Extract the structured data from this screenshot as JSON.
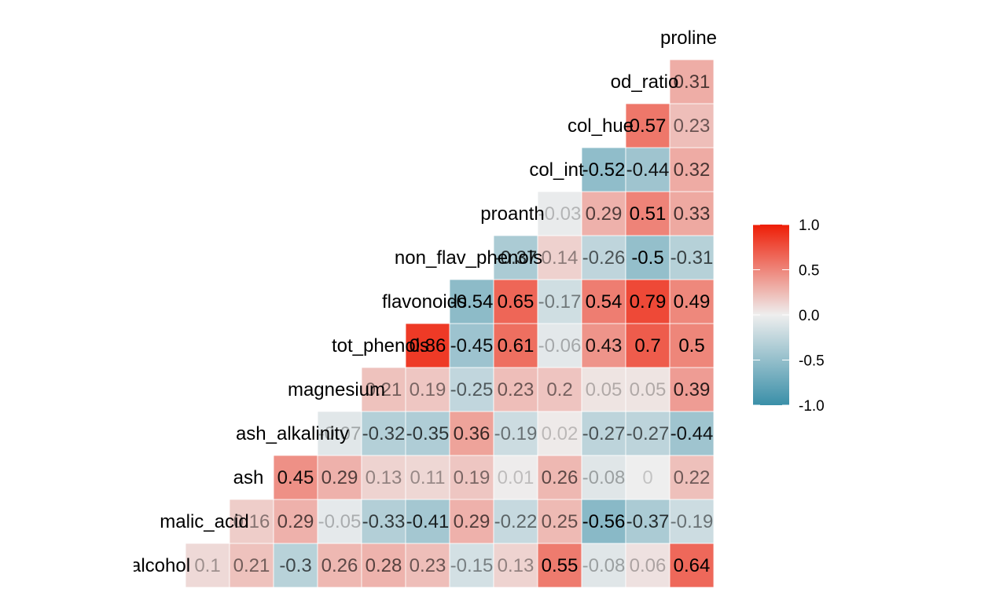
{
  "chart_data": {
    "type": "heatmap",
    "title": "",
    "xlabel": "",
    "ylabel": "",
    "variables": [
      "alcohol",
      "malic_acid",
      "ash",
      "ash_alkalinity",
      "magnesium",
      "tot_phenols",
      "flavonoids",
      "non_flav_phenols",
      "proanth",
      "col_int",
      "col_hue",
      "od_ratio",
      "proline"
    ],
    "variable_labels": [
      "alcohol",
      "malic_acid",
      "ash",
      "ash_alkalinity",
      "magnesium",
      "tot_phenols",
      "flavonoids",
      "non_flav_phenols",
      "proanth",
      "col_int",
      "col_hue",
      "od_ratio",
      "proline"
    ],
    "cells": [
      {
        "row": "alcohol",
        "col": "malic_acid",
        "value": 0.1,
        "label": "0.1"
      },
      {
        "row": "alcohol",
        "col": "ash",
        "value": 0.21,
        "label": "0.21"
      },
      {
        "row": "alcohol",
        "col": "ash_alkalinity",
        "value": -0.3,
        "label": "-0.3"
      },
      {
        "row": "alcohol",
        "col": "magnesium",
        "value": 0.26,
        "label": "0.26"
      },
      {
        "row": "alcohol",
        "col": "tot_phenols",
        "value": 0.28,
        "label": "0.28"
      },
      {
        "row": "alcohol",
        "col": "flavonoids",
        "value": 0.23,
        "label": "0.23"
      },
      {
        "row": "alcohol",
        "col": "non_flav_phenols",
        "value": -0.15,
        "label": "-0.15"
      },
      {
        "row": "alcohol",
        "col": "proanth",
        "value": 0.13,
        "label": "0.13"
      },
      {
        "row": "alcohol",
        "col": "col_int",
        "value": 0.55,
        "label": "0.55"
      },
      {
        "row": "alcohol",
        "col": "col_hue",
        "value": -0.08,
        "label": "-0.08"
      },
      {
        "row": "alcohol",
        "col": "od_ratio",
        "value": 0.06,
        "label": "0.06"
      },
      {
        "row": "alcohol",
        "col": "proline",
        "value": 0.64,
        "label": "0.64"
      },
      {
        "row": "malic_acid",
        "col": "ash",
        "value": 0.16,
        "label": "0.16"
      },
      {
        "row": "malic_acid",
        "col": "ash_alkalinity",
        "value": 0.29,
        "label": "0.29"
      },
      {
        "row": "malic_acid",
        "col": "magnesium",
        "value": -0.05,
        "label": "-0.05"
      },
      {
        "row": "malic_acid",
        "col": "tot_phenols",
        "value": -0.33,
        "label": "-0.33"
      },
      {
        "row": "malic_acid",
        "col": "flavonoids",
        "value": -0.41,
        "label": "-0.41"
      },
      {
        "row": "malic_acid",
        "col": "non_flav_phenols",
        "value": 0.29,
        "label": "0.29"
      },
      {
        "row": "malic_acid",
        "col": "proanth",
        "value": -0.22,
        "label": "-0.22"
      },
      {
        "row": "malic_acid",
        "col": "col_int",
        "value": 0.25,
        "label": "0.25"
      },
      {
        "row": "malic_acid",
        "col": "col_hue",
        "value": -0.56,
        "label": "-0.56"
      },
      {
        "row": "malic_acid",
        "col": "od_ratio",
        "value": -0.37,
        "label": "-0.37"
      },
      {
        "row": "malic_acid",
        "col": "proline",
        "value": -0.19,
        "label": "-0.19"
      },
      {
        "row": "ash",
        "col": "ash_alkalinity",
        "value": 0.45,
        "label": "0.45"
      },
      {
        "row": "ash",
        "col": "magnesium",
        "value": 0.29,
        "label": "0.29"
      },
      {
        "row": "ash",
        "col": "tot_phenols",
        "value": 0.13,
        "label": "0.13"
      },
      {
        "row": "ash",
        "col": "flavonoids",
        "value": 0.11,
        "label": "0.11"
      },
      {
        "row": "ash",
        "col": "non_flav_phenols",
        "value": 0.19,
        "label": "0.19"
      },
      {
        "row": "ash",
        "col": "proanth",
        "value": 0.01,
        "label": "0.01"
      },
      {
        "row": "ash",
        "col": "col_int",
        "value": 0.26,
        "label": "0.26"
      },
      {
        "row": "ash",
        "col": "col_hue",
        "value": -0.08,
        "label": "-0.08"
      },
      {
        "row": "ash",
        "col": "od_ratio",
        "value": 0,
        "label": "0"
      },
      {
        "row": "ash",
        "col": "proline",
        "value": 0.22,
        "label": "0.22"
      },
      {
        "row": "ash_alkalinity",
        "col": "magnesium",
        "value": -0.07,
        "label": "-0.07"
      },
      {
        "row": "ash_alkalinity",
        "col": "tot_phenols",
        "value": -0.32,
        "label": "-0.32"
      },
      {
        "row": "ash_alkalinity",
        "col": "flavonoids",
        "value": -0.35,
        "label": "-0.35"
      },
      {
        "row": "ash_alkalinity",
        "col": "non_flav_phenols",
        "value": 0.36,
        "label": "0.36"
      },
      {
        "row": "ash_alkalinity",
        "col": "proanth",
        "value": -0.19,
        "label": "-0.19"
      },
      {
        "row": "ash_alkalinity",
        "col": "col_int",
        "value": 0.02,
        "label": "0.02"
      },
      {
        "row": "ash_alkalinity",
        "col": "col_hue",
        "value": -0.27,
        "label": "-0.27"
      },
      {
        "row": "ash_alkalinity",
        "col": "od_ratio",
        "value": -0.27,
        "label": "-0.27"
      },
      {
        "row": "ash_alkalinity",
        "col": "proline",
        "value": -0.44,
        "label": "-0.44"
      },
      {
        "row": "magnesium",
        "col": "tot_phenols",
        "value": 0.21,
        "label": "0.21"
      },
      {
        "row": "magnesium",
        "col": "flavonoids",
        "value": 0.19,
        "label": "0.19"
      },
      {
        "row": "magnesium",
        "col": "non_flav_phenols",
        "value": -0.25,
        "label": "-0.25"
      },
      {
        "row": "magnesium",
        "col": "proanth",
        "value": 0.23,
        "label": "0.23"
      },
      {
        "row": "magnesium",
        "col": "col_int",
        "value": 0.2,
        "label": "0.2"
      },
      {
        "row": "magnesium",
        "col": "col_hue",
        "value": 0.05,
        "label": "0.05"
      },
      {
        "row": "magnesium",
        "col": "od_ratio",
        "value": 0.05,
        "label": "0.05"
      },
      {
        "row": "magnesium",
        "col": "proline",
        "value": 0.39,
        "label": "0.39"
      },
      {
        "row": "tot_phenols",
        "col": "flavonoids",
        "value": 0.86,
        "label": "0.86"
      },
      {
        "row": "tot_phenols",
        "col": "non_flav_phenols",
        "value": -0.45,
        "label": "-0.45"
      },
      {
        "row": "tot_phenols",
        "col": "proanth",
        "value": 0.61,
        "label": "0.61"
      },
      {
        "row": "tot_phenols",
        "col": "col_int",
        "value": -0.06,
        "label": "-0.06"
      },
      {
        "row": "tot_phenols",
        "col": "col_hue",
        "value": 0.43,
        "label": "0.43"
      },
      {
        "row": "tot_phenols",
        "col": "od_ratio",
        "value": 0.7,
        "label": "0.7"
      },
      {
        "row": "tot_phenols",
        "col": "proline",
        "value": 0.5,
        "label": "0.5"
      },
      {
        "row": "flavonoids",
        "col": "non_flav_phenols",
        "value": -0.54,
        "label": "-0.54"
      },
      {
        "row": "flavonoids",
        "col": "proanth",
        "value": 0.65,
        "label": "0.65"
      },
      {
        "row": "flavonoids",
        "col": "col_int",
        "value": -0.17,
        "label": "-0.17"
      },
      {
        "row": "flavonoids",
        "col": "col_hue",
        "value": 0.54,
        "label": "0.54"
      },
      {
        "row": "flavonoids",
        "col": "od_ratio",
        "value": 0.79,
        "label": "0.79"
      },
      {
        "row": "flavonoids",
        "col": "proline",
        "value": 0.49,
        "label": "0.49"
      },
      {
        "row": "non_flav_phenols",
        "col": "proanth",
        "value": -0.37,
        "label": "-0.37"
      },
      {
        "row": "non_flav_phenols",
        "col": "col_int",
        "value": 0.14,
        "label": "0.14"
      },
      {
        "row": "non_flav_phenols",
        "col": "col_hue",
        "value": -0.26,
        "label": "-0.26"
      },
      {
        "row": "non_flav_phenols",
        "col": "od_ratio",
        "value": -0.5,
        "label": "-0.5"
      },
      {
        "row": "non_flav_phenols",
        "col": "proline",
        "value": -0.31,
        "label": "-0.31"
      },
      {
        "row": "proanth",
        "col": "col_int",
        "value": -0.03,
        "label": "-0.03"
      },
      {
        "row": "proanth",
        "col": "col_hue",
        "value": 0.29,
        "label": "0.29"
      },
      {
        "row": "proanth",
        "col": "od_ratio",
        "value": 0.51,
        "label": "0.51"
      },
      {
        "row": "proanth",
        "col": "proline",
        "value": 0.33,
        "label": "0.33"
      },
      {
        "row": "col_int",
        "col": "col_hue",
        "value": -0.52,
        "label": "-0.52"
      },
      {
        "row": "col_int",
        "col": "od_ratio",
        "value": -0.44,
        "label": "-0.44"
      },
      {
        "row": "col_int",
        "col": "proline",
        "value": 0.32,
        "label": "0.32"
      },
      {
        "row": "col_hue",
        "col": "od_ratio",
        "value": 0.57,
        "label": "0.57"
      },
      {
        "row": "col_hue",
        "col": "proline",
        "value": 0.23,
        "label": "0.23"
      },
      {
        "row": "od_ratio",
        "col": "proline",
        "value": 0.31,
        "label": "0.31"
      }
    ],
    "color_scale": {
      "low": "#3A8FA8",
      "mid": "#EEEEEE",
      "high": "#EE1D06",
      "limits": [
        -1.0,
        1.0
      ]
    },
    "legend": {
      "placement": "right",
      "ticks": [
        "1.0",
        "0.5",
        "0.0",
        "-0.5",
        "-1.0"
      ],
      "tick_values": [
        1.0,
        0.5,
        0.0,
        -0.5,
        -1.0
      ]
    },
    "grid": false
  }
}
